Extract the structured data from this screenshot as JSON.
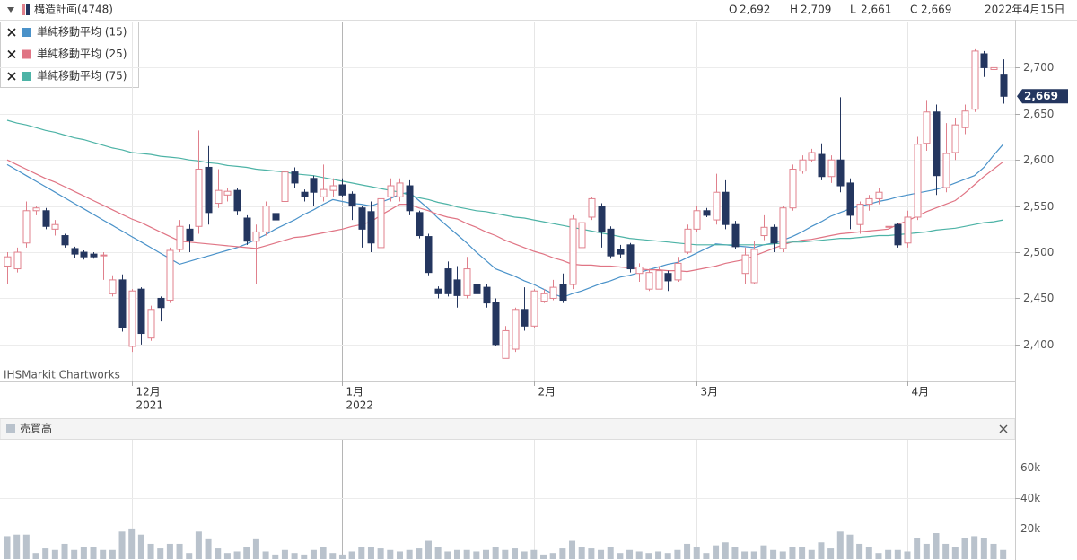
{
  "chart_data": [
    {
      "type": "candlestick",
      "title": "構造計画(4748)",
      "date": "2022年4月15日",
      "ohlc_names": [
        "O",
        "H",
        "L",
        "C"
      ],
      "ohlc_values": [
        2692,
        2709,
        2661,
        2669
      ],
      "ohlc_value_labels": [
        "2,692",
        "2,709",
        "2,661",
        "2,669"
      ],
      "categories": [
        null,
        null,
        null,
        null,
        null,
        null,
        null,
        null,
        null,
        null,
        null,
        null,
        null,
        "12月",
        null,
        null,
        null,
        null,
        null,
        null,
        null,
        null,
        null,
        null,
        null,
        null,
        null,
        null,
        null,
        null,
        null,
        null,
        null,
        null,
        null,
        "1月",
        null,
        null,
        null,
        null,
        null,
        null,
        null,
        null,
        null,
        null,
        null,
        null,
        null,
        null,
        null,
        null,
        null,
        null,
        null,
        "2月",
        null,
        null,
        null,
        null,
        null,
        null,
        null,
        null,
        null,
        null,
        null,
        null,
        null,
        null,
        null,
        null,
        "3月",
        null,
        null,
        null,
        null,
        null,
        null,
        null,
        null,
        null,
        null,
        null,
        null,
        null,
        null,
        null,
        null,
        null,
        null,
        null,
        null,
        null,
        "4月",
        null,
        null,
        null,
        null,
        null,
        null,
        null,
        null,
        null,
        null
      ],
      "category_years": [
        null,
        null,
        null,
        null,
        null,
        null,
        null,
        null,
        null,
        null,
        null,
        null,
        null,
        "2021",
        null,
        null,
        null,
        null,
        null,
        null,
        null,
        null,
        null,
        null,
        null,
        null,
        null,
        null,
        null,
        null,
        null,
        null,
        null,
        null,
        null,
        "2022",
        null,
        null,
        null,
        null,
        null,
        null,
        null,
        null,
        null,
        null,
        null,
        null,
        null,
        null,
        null,
        null,
        null,
        null,
        null,
        null,
        null,
        null,
        null,
        null,
        null,
        null,
        null,
        null,
        null,
        null,
        null,
        null,
        null,
        null,
        null,
        null,
        null,
        null,
        null,
        null,
        null,
        null,
        null,
        null,
        null,
        null,
        null,
        null,
        null,
        null,
        null,
        null,
        null,
        null,
        null,
        null,
        null,
        null,
        null,
        null,
        null,
        null,
        null,
        null,
        null,
        null,
        null,
        null,
        null
      ],
      "open": [
        2485,
        2482,
        2510,
        2545,
        2545,
        2525,
        2518,
        2504,
        2500,
        2498,
        2497,
        2455,
        2470,
        2398,
        2460,
        2407,
        2450,
        2448,
        2503,
        2525,
        2528,
        2592,
        2553,
        2562,
        2567,
        2537,
        2512,
        2522,
        2542,
        2555,
        2587,
        2565,
        2580,
        2560,
        2567,
        2573,
        2563,
        2548,
        2544,
        2505,
        2560,
        2560,
        2572,
        2543,
        2517,
        2460,
        2482,
        2470,
        2453,
        2465,
        2462,
        2446,
        2385,
        2395,
        2438,
        2420,
        2447,
        2450,
        2465,
        2465,
        2505,
        2538,
        2550,
        2525,
        2503,
        2508,
        2477,
        2460,
        2460,
        2477,
        2470,
        2500,
        2525,
        2545,
        2535,
        2565,
        2530,
        2477,
        2467,
        2518,
        2527,
        2504,
        2548,
        2588,
        2600,
        2606,
        2582,
        2600,
        2575,
        2530,
        2552,
        2558,
        2528,
        2530,
        2510,
        2538,
        2618,
        2652,
        2570,
        2608,
        2635,
        2655,
        2715,
        2698,
        2692
      ],
      "high": [
        2500,
        2505,
        2555,
        2550,
        2548,
        2535,
        2520,
        2506,
        2502,
        2500,
        2500,
        2475,
        2476,
        2460,
        2462,
        2442,
        2452,
        2505,
        2535,
        2530,
        2632,
        2615,
        2590,
        2570,
        2570,
        2540,
        2530,
        2555,
        2558,
        2592,
        2592,
        2568,
        2583,
        2595,
        2580,
        2580,
        2566,
        2550,
        2555,
        2578,
        2580,
        2580,
        2578,
        2545,
        2520,
        2463,
        2490,
        2485,
        2495,
        2470,
        2466,
        2450,
        2420,
        2440,
        2462,
        2460,
        2460,
        2470,
        2477,
        2540,
        2535,
        2560,
        2553,
        2528,
        2508,
        2510,
        2488,
        2482,
        2485,
        2480,
        2495,
        2530,
        2550,
        2548,
        2585,
        2578,
        2534,
        2505,
        2512,
        2540,
        2530,
        2550,
        2595,
        2605,
        2612,
        2618,
        2605,
        2668,
        2580,
        2555,
        2562,
        2570,
        2540,
        2532,
        2545,
        2625,
        2665,
        2660,
        2640,
        2645,
        2660,
        2720,
        2718,
        2722,
        2709
      ],
      "low": [
        2465,
        2478,
        2505,
        2540,
        2525,
        2518,
        2505,
        2494,
        2492,
        2493,
        2470,
        2452,
        2414,
        2392,
        2400,
        2404,
        2425,
        2445,
        2500,
        2500,
        2520,
        2530,
        2548,
        2555,
        2540,
        2508,
        2465,
        2518,
        2525,
        2550,
        2570,
        2555,
        2550,
        2555,
        2560,
        2560,
        2535,
        2505,
        2500,
        2500,
        2555,
        2555,
        2540,
        2515,
        2475,
        2450,
        2452,
        2440,
        2450,
        2440,
        2440,
        2398,
        2385,
        2392,
        2415,
        2418,
        2445,
        2448,
        2445,
        2460,
        2500,
        2535,
        2505,
        2493,
        2494,
        2478,
        2468,
        2458,
        2460,
        2458,
        2468,
        2498,
        2522,
        2538,
        2530,
        2525,
        2503,
        2465,
        2465,
        2513,
        2500,
        2500,
        2545,
        2585,
        2598,
        2578,
        2575,
        2565,
        2525,
        2520,
        2545,
        2552,
        2512,
        2505,
        2505,
        2535,
        2610,
        2562,
        2565,
        2600,
        2628,
        2652,
        2690,
        2680,
        2661
      ],
      "close": [
        2495,
        2500,
        2545,
        2548,
        2528,
        2530,
        2508,
        2498,
        2495,
        2495,
        2497,
        2470,
        2418,
        2458,
        2412,
        2438,
        2440,
        2502,
        2528,
        2513,
        2590,
        2543,
        2567,
        2566,
        2545,
        2512,
        2522,
        2550,
        2535,
        2587,
        2575,
        2560,
        2565,
        2568,
        2572,
        2562,
        2550,
        2525,
        2510,
        2558,
        2572,
        2575,
        2545,
        2518,
        2478,
        2455,
        2455,
        2453,
        2482,
        2455,
        2445,
        2400,
        2415,
        2438,
        2420,
        2458,
        2455,
        2462,
        2448,
        2536,
        2532,
        2558,
        2522,
        2496,
        2498,
        2482,
        2484,
        2478,
        2480,
        2469,
        2488,
        2525,
        2545,
        2540,
        2565,
        2530,
        2506,
        2497,
        2503,
        2527,
        2510,
        2548,
        2590,
        2600,
        2608,
        2582,
        2600,
        2572,
        2540,
        2552,
        2558,
        2565,
        2528,
        2508,
        2538,
        2617,
        2652,
        2583,
        2607,
        2638,
        2653,
        2718,
        2700,
        2700,
        2669
      ],
      "up_color": "#e0808c",
      "down_color": "#24365f",
      "moving_averages": [
        {
          "name": "単純移動平均 (15)",
          "color": "#4a92c9",
          "values": [
            2595,
            2589,
            2583,
            2577,
            2571,
            2565,
            2559,
            2553,
            2547,
            2541,
            2535,
            2529,
            2523,
            2517,
            2511,
            2505,
            2499,
            2493,
            2487,
            2490,
            2493,
            2496,
            2499,
            2502,
            2505,
            2509,
            2514,
            2519,
            2525,
            2530,
            2535,
            2541,
            2546,
            2552,
            2557,
            2555,
            2553,
            2552,
            2550,
            2554,
            2558,
            2563,
            2565,
            2556,
            2547,
            2537,
            2528,
            2519,
            2510,
            2500,
            2491,
            2482,
            2478,
            2474,
            2469,
            2465,
            2460,
            2455,
            2451,
            2455,
            2458,
            2462,
            2466,
            2469,
            2473,
            2475,
            2478,
            2481,
            2484,
            2487,
            2489,
            2494,
            2499,
            2504,
            2509,
            2508,
            2507,
            2506,
            2505,
            2508,
            2510,
            2513,
            2517,
            2522,
            2528,
            2533,
            2539,
            2543,
            2547,
            2550,
            2552,
            2555,
            2557,
            2560,
            2562,
            2564,
            2566,
            2568,
            2571,
            2575,
            2579,
            2583,
            2592,
            2605,
            2617
          ]
        },
        {
          "name": "単純移動平均 (25)",
          "color": "#e07484",
          "values": [
            2600,
            2595,
            2590,
            2585,
            2580,
            2576,
            2571,
            2566,
            2561,
            2556,
            2551,
            2546,
            2541,
            2536,
            2532,
            2527,
            2522,
            2517,
            2512,
            2511,
            2510,
            2509,
            2508,
            2507,
            2506,
            2505,
            2504,
            2507,
            2510,
            2513,
            2516,
            2517,
            2519,
            2521,
            2523,
            2525,
            2528,
            2530,
            2533,
            2540,
            2546,
            2552,
            2552,
            2548,
            2545,
            2541,
            2538,
            2536,
            2531,
            2527,
            2522,
            2518,
            2513,
            2509,
            2505,
            2501,
            2498,
            2494,
            2491,
            2487,
            2486,
            2486,
            2485,
            2485,
            2484,
            2483,
            2482,
            2481,
            2481,
            2480,
            2480,
            2479,
            2481,
            2483,
            2485,
            2488,
            2490,
            2492,
            2496,
            2500,
            2504,
            2508,
            2511,
            2513,
            2514,
            2516,
            2518,
            2520,
            2521,
            2522,
            2523,
            2524,
            2525,
            2530,
            2534,
            2539,
            2544,
            2548,
            2552,
            2556,
            2564,
            2573,
            2582,
            2590,
            2598
          ]
        },
        {
          "name": "単純移動平均 (75)",
          "color": "#4db3a6",
          "values": [
            2643,
            2640,
            2638,
            2635,
            2632,
            2630,
            2627,
            2624,
            2622,
            2619,
            2616,
            2613,
            2611,
            2608,
            2607,
            2606,
            2604,
            2603,
            2602,
            2600,
            2599,
            2597,
            2596,
            2594,
            2593,
            2592,
            2590,
            2589,
            2588,
            2587,
            2585,
            2584,
            2583,
            2581,
            2579,
            2577,
            2575,
            2573,
            2571,
            2569,
            2567,
            2565,
            2562,
            2559,
            2557,
            2554,
            2552,
            2549,
            2547,
            2545,
            2544,
            2542,
            2540,
            2538,
            2537,
            2535,
            2533,
            2531,
            2529,
            2527,
            2525,
            2523,
            2521,
            2519,
            2517,
            2515,
            2514,
            2513,
            2512,
            2511,
            2510,
            2509,
            2508,
            2508,
            2508,
            2508,
            2508,
            2508,
            2508,
            2508,
            2509,
            2510,
            2511,
            2511,
            2512,
            2513,
            2514,
            2515,
            2515,
            2516,
            2517,
            2518,
            2518,
            2519,
            2520,
            2521,
            2522,
            2524,
            2525,
            2526,
            2528,
            2530,
            2532,
            2533,
            2535
          ]
        }
      ],
      "ylim": [
        2360,
        2750
      ],
      "yticks": [
        {
          "value": 2400,
          "label": "2,400"
        },
        {
          "value": 2450,
          "label": "2,450"
        },
        {
          "value": 2500,
          "label": "2,500"
        },
        {
          "value": 2550,
          "label": "2,550"
        },
        {
          "value": 2600,
          "label": "2,600"
        },
        {
          "value": 2650,
          "label": "2,650"
        },
        {
          "value": 2700,
          "label": "2,700"
        }
      ],
      "grid": true,
      "watermark": "IHSMarkit Chartworks"
    },
    {
      "type": "bar",
      "title": "売買高",
      "color": "#b9c2cc",
      "values": [
        15000,
        16000,
        16000,
        4000,
        7000,
        6000,
        10000,
        6000,
        8000,
        8000,
        6000,
        6000,
        18000,
        20000,
        16000,
        10000,
        7000,
        10000,
        10000,
        4000,
        18000,
        13000,
        7000,
        4000,
        5000,
        8000,
        13000,
        5000,
        3000,
        6000,
        4000,
        3000,
        6000,
        8000,
        4000,
        3000,
        5000,
        8000,
        8000,
        7000,
        6000,
        5000,
        6000,
        7000,
        12000,
        8000,
        5000,
        6000,
        6000,
        5000,
        6000,
        8000,
        6000,
        7000,
        5000,
        6000,
        3000,
        4000,
        7000,
        12000,
        8000,
        7000,
        6000,
        8000,
        4000,
        6000,
        5000,
        4000,
        5000,
        4000,
        6000,
        10000,
        8000,
        4000,
        9000,
        11000,
        8000,
        5000,
        5000,
        9000,
        6000,
        5000,
        8000,
        8000,
        6000,
        11000,
        7000,
        18000,
        16000,
        10000,
        8000,
        4000,
        6000,
        6000,
        5000,
        14000,
        10000,
        17000,
        10000,
        8000,
        14000,
        15000,
        14000,
        10000,
        6000
      ],
      "ylim": [
        0,
        78000
      ],
      "yticks": [
        {
          "value": 20000,
          "label": "20k"
        },
        {
          "value": 40000,
          "label": "40k"
        },
        {
          "value": 60000,
          "label": "60k"
        }
      ],
      "grid": true
    }
  ]
}
